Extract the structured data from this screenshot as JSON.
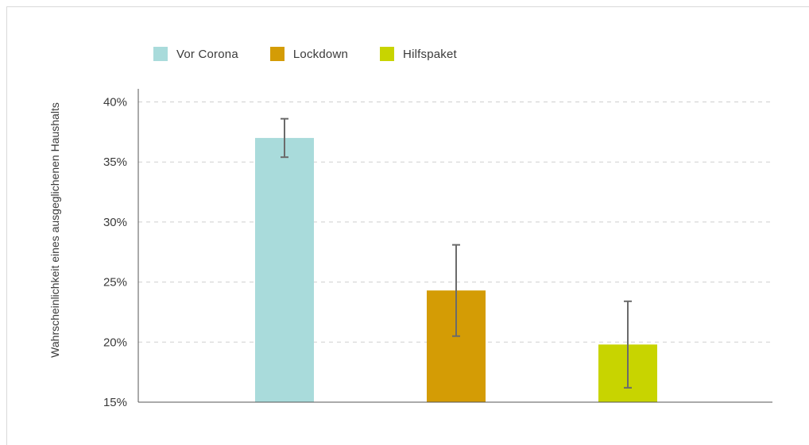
{
  "chart_data": {
    "type": "bar",
    "ylabel": "Wahrscheinlichkeit eines ausgeglichenen Haushalts",
    "xlabel": "",
    "ylim": [
      15,
      41
    ],
    "yticks": [
      15,
      20,
      25,
      30,
      35,
      40
    ],
    "ytick_labels": [
      "15%",
      "20%",
      "25%",
      "30%",
      "35%",
      "40%"
    ],
    "grid": "horizontal dashed",
    "legend_position": "top-left",
    "categories": [
      "Vor Corona",
      "Lockdown",
      "Hilfspaket"
    ],
    "values": [
      37.0,
      24.3,
      19.8
    ],
    "error_low": [
      35.4,
      20.5,
      16.2
    ],
    "error_high": [
      38.6,
      28.1,
      23.4
    ],
    "colors": [
      "#a9dbdb",
      "#d49c05",
      "#c8d400"
    ]
  }
}
